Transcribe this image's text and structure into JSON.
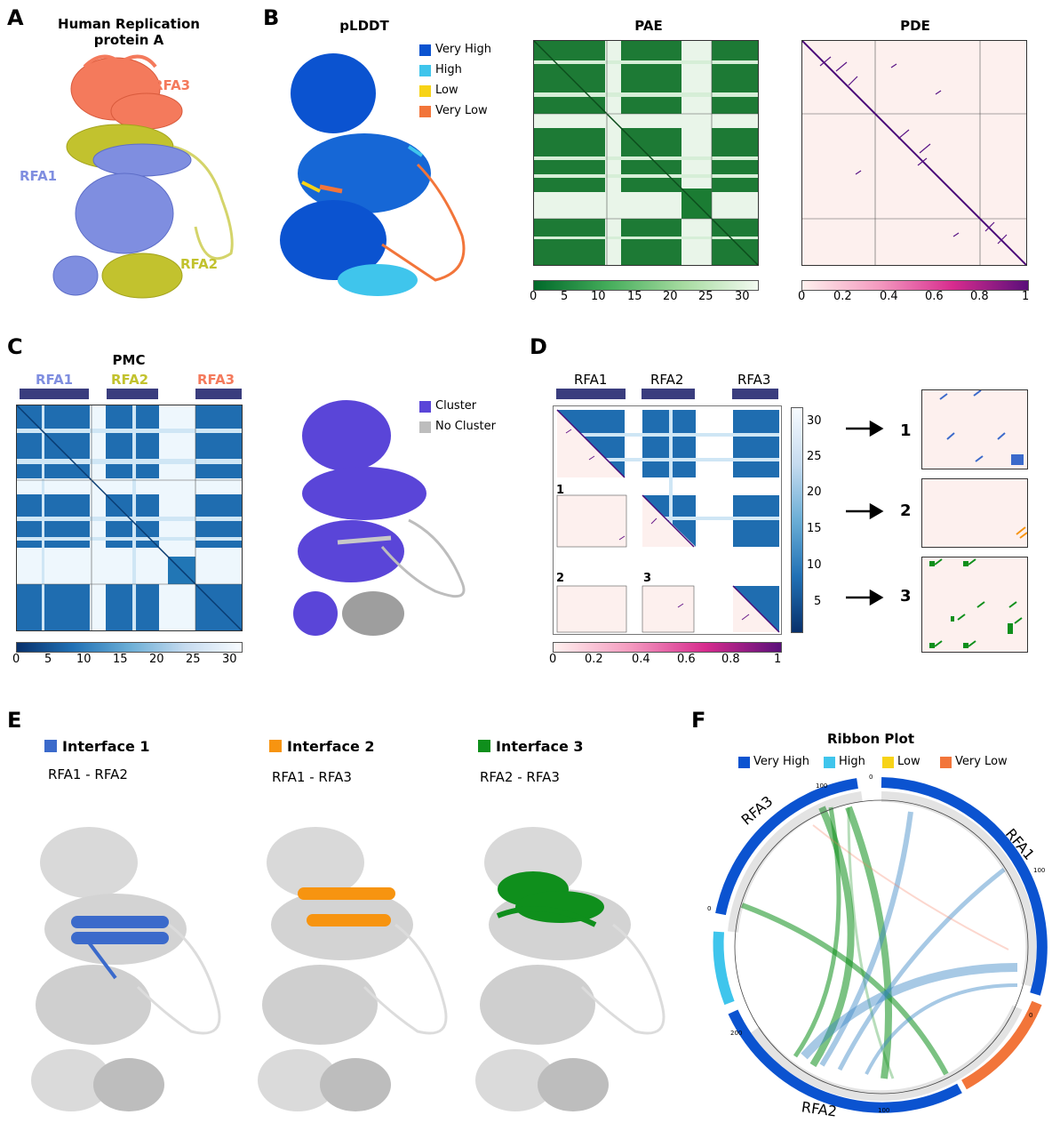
{
  "colors": {
    "rfa1": "#7f8ee0",
    "rfa2": "#c2c22e",
    "rfa3": "#f47a5c",
    "very_high": "#0b53d0",
    "high": "#3fc5ec",
    "low": "#f7d317",
    "very_low": "#f2753a",
    "cluster": "#5a45d8",
    "no_cluster": "#bdbdbd",
    "interface1": "#3b6acb",
    "interface2": "#f79410",
    "interface3": "#0f8f1c"
  },
  "panelA": {
    "letter": "A",
    "title_line1": "Human Replication",
    "title_line2": "protein A",
    "labels": [
      "RFA3",
      "RFA1",
      "RFA2"
    ]
  },
  "panelB": {
    "letter": "B",
    "plddt_title": "pLDDT",
    "legend": [
      "Very High",
      "High",
      "Low",
      "Very Low"
    ],
    "pae_title": "PAE",
    "pae_ticks": [
      "0",
      "5",
      "10",
      "15",
      "20",
      "25",
      "30"
    ],
    "pde_title": "PDE",
    "pde_ticks": [
      "0",
      "0.2",
      "0.4",
      "0.6",
      "0.8",
      "1"
    ]
  },
  "panelC": {
    "letter": "C",
    "title": "PMC",
    "chains": [
      "RFA1",
      "RFA2",
      "RFA3"
    ],
    "ticks": [
      "0",
      "5",
      "10",
      "15",
      "20",
      "25",
      "30"
    ],
    "legend": [
      "Cluster",
      "No Cluster"
    ]
  },
  "panelD": {
    "letter": "D",
    "chains": [
      "RFA1",
      "RFA2",
      "RFA3"
    ],
    "block_labels": [
      "1",
      "2",
      "3"
    ],
    "vticks": [
      "30",
      "25",
      "20",
      "15",
      "10",
      "5"
    ],
    "hticks": [
      "0",
      "0.2",
      "0.4",
      "0.6",
      "0.8",
      "1"
    ],
    "zoom_labels": [
      "1",
      "2",
      "3"
    ]
  },
  "panelE": {
    "letter": "E",
    "interfaces": [
      {
        "title": "Interface 1",
        "pair": "RFA1 - RFA2"
      },
      {
        "title": "Interface 2",
        "pair": "RFA1 - RFA3"
      },
      {
        "title": "Interface 3",
        "pair": "RFA2 - RFA3"
      }
    ]
  },
  "panelF": {
    "letter": "F",
    "title": "Ribbon Plot",
    "legend": [
      "Very High",
      "High",
      "Low",
      "Very Low"
    ],
    "chains": [
      "RFA3",
      "RFA1",
      "RFA2"
    ],
    "ticks": [
      "0",
      "100",
      "100",
      "0",
      "200",
      "100",
      "0"
    ]
  }
}
